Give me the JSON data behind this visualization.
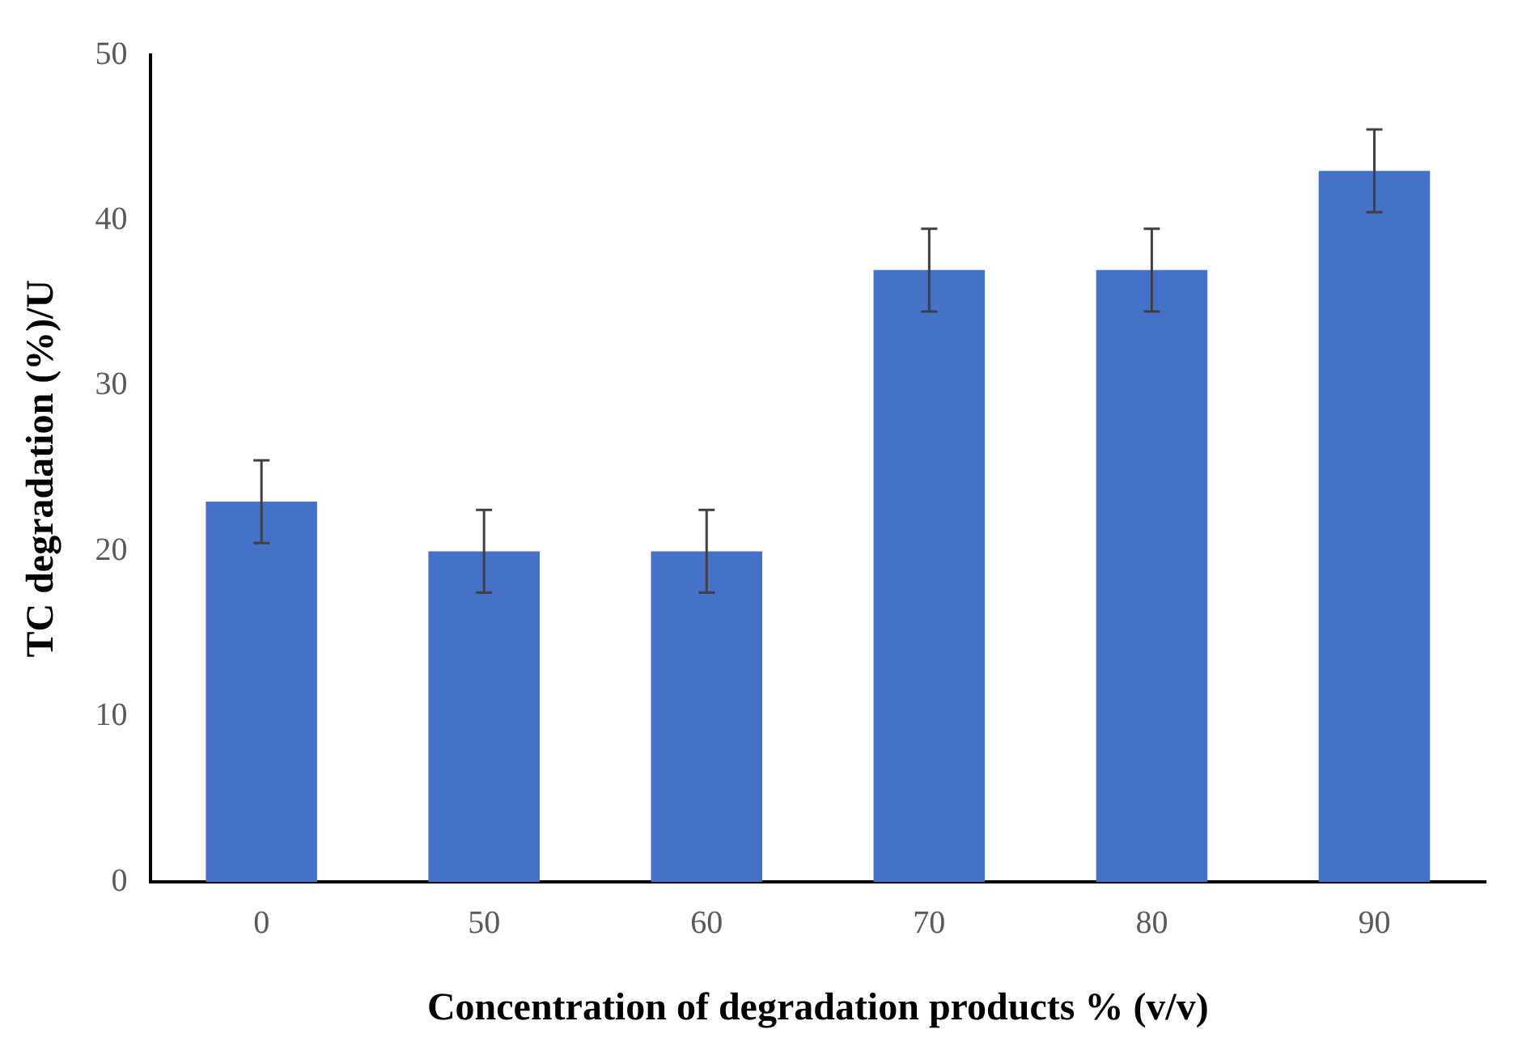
{
  "chart_data": {
    "type": "bar",
    "xlabel": "Concentration of degradation products % (v/v)",
    "ylabel": "TC degradation (%)/U",
    "categories": [
      "0",
      "50",
      "60",
      "70",
      "80",
      "90"
    ],
    "values": [
      23,
      20,
      20,
      37,
      37,
      43
    ],
    "errors": [
      2.5,
      2.5,
      2.5,
      2.5,
      2.5,
      2.5
    ],
    "color": "#4572c8",
    "ylim": [
      0,
      50
    ],
    "yticks": [
      0,
      10,
      20,
      30,
      40,
      50
    ],
    "grid": false,
    "legend": false
  }
}
